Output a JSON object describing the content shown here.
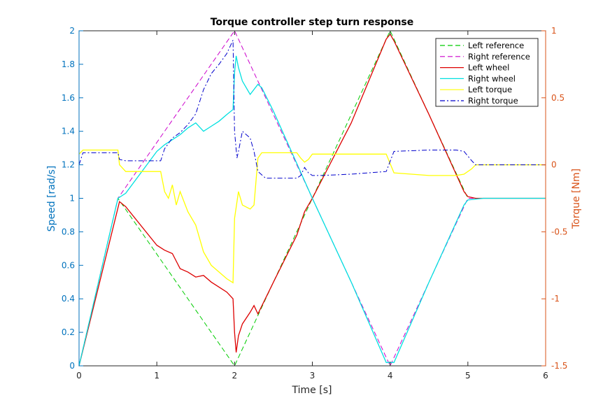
{
  "chart_data": {
    "type": "line",
    "title": "Torque controller step turn response",
    "xlabel": "Time [s]",
    "ylabel_left": "Speed [rad/s]",
    "ylabel_right": "Torque [Nm]",
    "xlim": [
      0,
      6
    ],
    "ylim_left": [
      0,
      2
    ],
    "ylim_right": [
      -1.5,
      1
    ],
    "x_ticks": [
      "0",
      "1",
      "2",
      "3",
      "4",
      "5",
      "6"
    ],
    "y_left_ticks": [
      "0",
      "0.2",
      "0.4",
      "0.6",
      "0.8",
      "1",
      "1.2",
      "1.4",
      "1.6",
      "1.8",
      "2"
    ],
    "y_right_ticks": [
      "-1.5",
      "-1",
      "-0.5",
      "0",
      "0.5",
      "1"
    ],
    "grid": false,
    "legend_position": "top-right",
    "colors": {
      "left_axis": "#0072BD",
      "right_axis": "#D95319"
    },
    "series": [
      {
        "name": "Left reference",
        "axis": "left",
        "color": "#00CC00",
        "style": "dashed",
        "x": [
          0,
          0.5,
          2.0,
          4.0,
          5.0,
          5.2,
          6.0
        ],
        "y": [
          0,
          1.0,
          0.0,
          2.0,
          1.0,
          1.0,
          1.0
        ]
      },
      {
        "name": "Right reference",
        "axis": "left",
        "color": "#CC00CC",
        "style": "dashed",
        "x": [
          0,
          0.5,
          2.0,
          4.0,
          5.0,
          5.2,
          6.0
        ],
        "y": [
          0,
          1.0,
          2.0,
          0.0,
          1.0,
          1.0,
          1.0
        ]
      },
      {
        "name": "Left wheel",
        "axis": "left",
        "color": "#DD0000",
        "style": "solid",
        "x": [
          0,
          0.52,
          0.6,
          1.0,
          1.1,
          1.2,
          1.3,
          1.4,
          1.5,
          1.6,
          1.7,
          1.8,
          1.9,
          1.98,
          2.0,
          2.02,
          2.05,
          2.1,
          2.2,
          2.25,
          2.3,
          2.5,
          2.8,
          2.9,
          3.0,
          3.5,
          3.95,
          4.0,
          4.05,
          4.5,
          4.95,
          5.0,
          5.1,
          5.2,
          6.0
        ],
        "y": [
          0,
          0.98,
          0.95,
          0.72,
          0.69,
          0.67,
          0.58,
          0.56,
          0.53,
          0.54,
          0.5,
          0.47,
          0.44,
          0.4,
          0.2,
          0.08,
          0.18,
          0.25,
          0.32,
          0.36,
          0.31,
          0.5,
          0.78,
          0.92,
          1.0,
          1.45,
          1.95,
          1.98,
          1.94,
          1.5,
          1.04,
          1.01,
          1.0,
          1.0,
          1.0
        ]
      },
      {
        "name": "Right wheel",
        "axis": "left",
        "color": "#00E0E0",
        "style": "solid",
        "x": [
          0,
          0.5,
          0.6,
          1.0,
          1.1,
          1.2,
          1.3,
          1.4,
          1.5,
          1.6,
          1.7,
          1.8,
          1.9,
          1.98,
          2.0,
          2.02,
          2.05,
          2.1,
          2.2,
          2.3,
          2.35,
          2.5,
          3.0,
          3.5,
          3.95,
          4.05,
          4.5,
          4.95,
          5.0,
          5.2,
          6.0
        ],
        "y": [
          0,
          1.0,
          1.03,
          1.28,
          1.32,
          1.35,
          1.38,
          1.42,
          1.45,
          1.4,
          1.43,
          1.46,
          1.5,
          1.53,
          1.75,
          1.85,
          1.78,
          1.7,
          1.62,
          1.68,
          1.66,
          1.52,
          1.0,
          0.5,
          0.02,
          0.02,
          0.5,
          0.96,
          0.99,
          1.0,
          1.0
        ]
      },
      {
        "name": "Left torque",
        "axis": "right",
        "color": "#FFFF00",
        "style": "solid",
        "x": [
          0,
          0.05,
          0.5,
          0.52,
          0.6,
          1.05,
          1.1,
          1.15,
          1.2,
          1.25,
          1.3,
          1.4,
          1.5,
          1.6,
          1.7,
          1.8,
          1.9,
          1.98,
          2.0,
          2.05,
          2.1,
          2.2,
          2.25,
          2.3,
          2.35,
          2.8,
          2.85,
          2.9,
          2.95,
          3.0,
          3.05,
          3.1,
          3.5,
          3.95,
          4.05,
          4.5,
          4.85,
          4.95,
          5.05,
          5.1,
          6.0
        ],
        "y": [
          0.08,
          0.11,
          0.11,
          0.0,
          -0.05,
          -0.05,
          -0.2,
          -0.25,
          -0.15,
          -0.3,
          -0.2,
          -0.35,
          -0.45,
          -0.65,
          -0.75,
          -0.8,
          -0.85,
          -0.88,
          -0.4,
          -0.2,
          -0.3,
          -0.33,
          -0.3,
          0.05,
          0.09,
          0.09,
          0.05,
          0.02,
          0.04,
          0.08,
          0.08,
          0.08,
          0.08,
          0.08,
          -0.06,
          -0.08,
          -0.08,
          -0.07,
          -0.03,
          0.0,
          0.0
        ]
      },
      {
        "name": "Right torque",
        "axis": "right",
        "color": "#0000CC",
        "style": "dashdot",
        "x": [
          0,
          0.05,
          0.5,
          0.52,
          0.6,
          1.05,
          1.1,
          1.2,
          1.3,
          1.4,
          1.5,
          1.6,
          1.7,
          1.8,
          1.9,
          1.98,
          2.0,
          2.03,
          2.05,
          2.1,
          2.2,
          2.25,
          2.3,
          2.4,
          2.8,
          2.85,
          2.9,
          2.95,
          3.0,
          3.05,
          3.1,
          3.5,
          3.95,
          4.05,
          4.5,
          4.85,
          4.95,
          5.05,
          5.1,
          6.0
        ],
        "y": [
          0.0,
          0.09,
          0.09,
          0.04,
          0.03,
          0.03,
          0.12,
          0.2,
          0.24,
          0.3,
          0.38,
          0.56,
          0.68,
          0.75,
          0.83,
          0.93,
          0.25,
          0.05,
          0.1,
          0.25,
          0.2,
          0.1,
          -0.05,
          -0.1,
          -0.1,
          -0.08,
          -0.02,
          -0.06,
          -0.08,
          -0.08,
          -0.08,
          -0.07,
          -0.05,
          0.1,
          0.11,
          0.11,
          0.1,
          0.03,
          0.0,
          0.0
        ]
      }
    ]
  }
}
